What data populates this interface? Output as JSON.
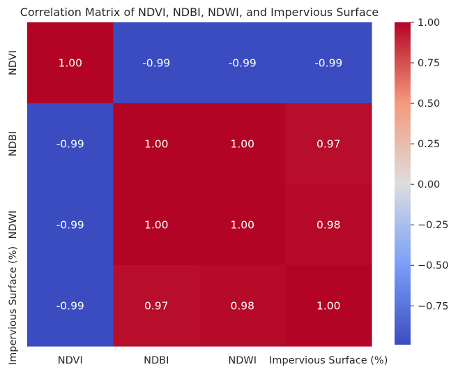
{
  "chart_data": {
    "type": "heatmap",
    "title": "Correlation Matrix of NDVI, NDBI, NDWI, and Impervious Surface",
    "x_categories": [
      "NDVI",
      "NDBI",
      "NDWI",
      "Impervious Surface (%)"
    ],
    "y_categories": [
      "NDVI",
      "NDBI",
      "NDWI",
      "Impervious Surface (%)"
    ],
    "values": [
      [
        1.0,
        -0.99,
        -0.99,
        -0.99
      ],
      [
        -0.99,
        1.0,
        1.0,
        0.97
      ],
      [
        -0.99,
        1.0,
        1.0,
        0.98
      ],
      [
        -0.99,
        0.97,
        0.98,
        1.0
      ]
    ],
    "cell_labels": [
      [
        "1.00",
        "-0.99",
        "-0.99",
        "-0.99"
      ],
      [
        "-0.99",
        "1.00",
        "1.00",
        "0.97"
      ],
      [
        "-0.99",
        "1.00",
        "1.00",
        "0.98"
      ],
      [
        "-0.99",
        "0.97",
        "0.98",
        "1.00"
      ]
    ],
    "colormap": "coolwarm",
    "value_range": [
      -0.99,
      1.0
    ],
    "colorbar": {
      "ticks": [
        1.0,
        0.75,
        0.5,
        0.25,
        0.0,
        -0.25,
        -0.5,
        -0.75
      ],
      "tick_labels": [
        "1.00",
        "0.75",
        "0.50",
        "0.25",
        "0.00",
        "−0.25",
        "−0.50",
        "−0.75"
      ]
    },
    "colors": {
      "low": "#3b4cc0",
      "mid": "#dddddd",
      "high": "#b40426",
      "cell_text": "#ffffff"
    }
  }
}
